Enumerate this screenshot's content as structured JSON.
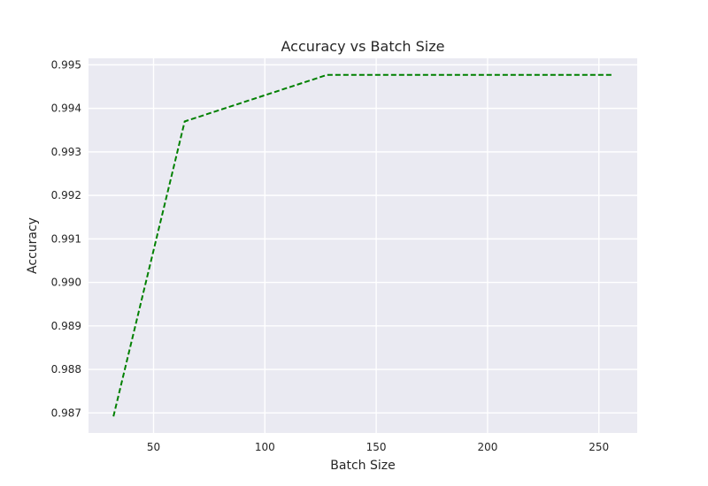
{
  "chart_data": {
    "type": "line",
    "title": "Accuracy vs Batch Size",
    "xlabel": "Batch Size",
    "ylabel": "Accuracy",
    "x": [
      32,
      64,
      128,
      256
    ],
    "series": [
      {
        "values": [
          0.98692,
          0.9937,
          0.99477,
          0.99477
        ],
        "color": "#008000",
        "linestyle": "dashed"
      }
    ],
    "xlim": [
      20.8,
      267.2
    ],
    "ylim": [
      0.98654,
      0.99515
    ],
    "xticks": [
      50,
      100,
      150,
      200,
      250
    ],
    "xtick_labels": [
      "50",
      "100",
      "150",
      "200",
      "250"
    ],
    "yticks": [
      0.987,
      0.988,
      0.989,
      0.99,
      0.991,
      0.992,
      0.993,
      0.994,
      0.995
    ],
    "ytick_labels": [
      "0.987",
      "0.988",
      "0.989",
      "0.990",
      "0.991",
      "0.992",
      "0.993",
      "0.994",
      "0.995"
    ],
    "grid": true,
    "background": "#eaeaf2"
  }
}
